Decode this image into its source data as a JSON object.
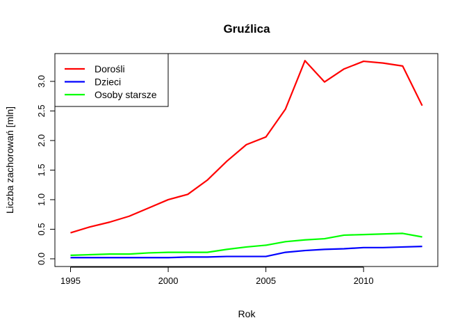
{
  "chart_data": {
    "type": "line",
    "title": "Gruźlica",
    "xlabel": "Rok",
    "ylabel": "Liczba zachorowań [mln]",
    "xlim": [
      1994.2,
      2013.8
    ],
    "ylim": [
      -0.13,
      3.47
    ],
    "x_ticks": [
      1995,
      2000,
      2005,
      2010
    ],
    "y_ticks": [
      0.0,
      0.5,
      1.0,
      1.5,
      2.0,
      2.5,
      3.0
    ],
    "y_tick_labels": [
      "0.0",
      "0.5",
      "1.0",
      "1.5",
      "2.0",
      "2.5",
      "3.0"
    ],
    "grid": false,
    "legend_position": "top-left",
    "x": [
      1995,
      1996,
      1997,
      1998,
      1999,
      2000,
      2001,
      2002,
      2003,
      2004,
      2005,
      2006,
      2007,
      2008,
      2009,
      2010,
      2011,
      2012,
      2013
    ],
    "series": [
      {
        "name": "Dorośli",
        "color": "#ff0000",
        "values": [
          0.44,
          0.54,
          0.62,
          0.72,
          0.86,
          1.0,
          1.09,
          1.33,
          1.65,
          1.93,
          2.06,
          2.53,
          3.35,
          2.99,
          3.21,
          3.34,
          3.31,
          3.26,
          2.59
        ]
      },
      {
        "name": "Dzieci",
        "color": "#0000ff",
        "values": [
          0.02,
          0.02,
          0.02,
          0.02,
          0.02,
          0.02,
          0.03,
          0.03,
          0.04,
          0.04,
          0.04,
          0.11,
          0.14,
          0.16,
          0.17,
          0.19,
          0.19,
          0.2,
          0.21
        ]
      },
      {
        "name": "Osoby starsze",
        "color": "#00ff00",
        "values": [
          0.06,
          0.07,
          0.08,
          0.08,
          0.1,
          0.11,
          0.11,
          0.11,
          0.16,
          0.2,
          0.23,
          0.29,
          0.32,
          0.34,
          0.4,
          0.41,
          0.42,
          0.43,
          0.37
        ]
      }
    ]
  }
}
